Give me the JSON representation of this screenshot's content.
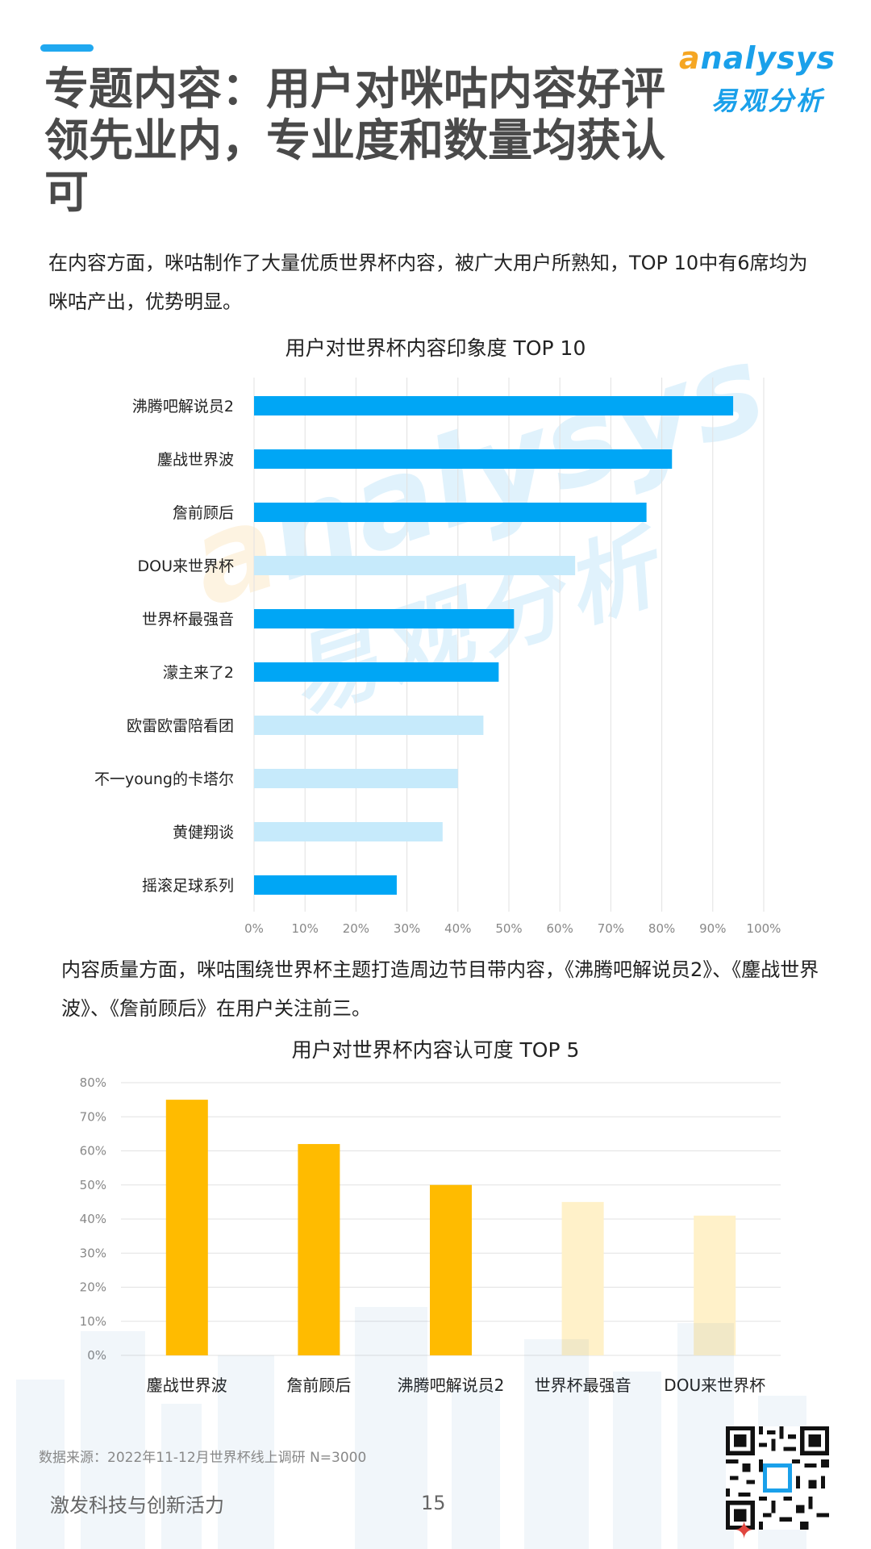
{
  "header": {
    "title": "专题内容：用户对咪咕内容好评领先业内，专业度和数量均获认可",
    "logo_en_accent": "a",
    "logo_en_rest": "nalysys",
    "logo_cn": "易观分析"
  },
  "intro_1": "在内容方面，咪咕制作了大量优质世界杯内容，被广大用户所熟知，TOP 10中有6席均为咪咕产出，优势明显。",
  "intro_2": "内容质量方面，咪咕围绕世界杯主题打造周边节目带内容，《沸腾吧解说员2》、《鏖战世界波》、《詹前顾后》在用户关注前三。",
  "colors": {
    "accent_blue": "#00A6F5",
    "light_blue": "#C6EAFB",
    "accent_yellow": "#FFBB00",
    "light_yellow": "#FFF1C9"
  },
  "chart_data": [
    {
      "type": "bar",
      "orientation": "horizontal",
      "title": "用户对世界杯内容印象度 TOP 10",
      "categories": [
        "沸腾吧解说员2",
        "鏖战世界波",
        "詹前顾后",
        "DOU来世界杯",
        "世界杯最强音",
        "濛主来了2",
        "欧雷欧雷陪看团",
        "不一young的卡塔尔",
        "黄健翔谈",
        "摇滚足球系列"
      ],
      "values": [
        94,
        82,
        77,
        63,
        51,
        48,
        45,
        40,
        37,
        28
      ],
      "highlight": [
        true,
        true,
        true,
        false,
        true,
        true,
        false,
        false,
        false,
        true
      ],
      "unit": "%",
      "xlim": [
        0,
        100
      ],
      "ticks": [
        "0%",
        "10%",
        "20%",
        "30%",
        "40%",
        "50%",
        "60%",
        "70%",
        "80%",
        "90%",
        "100%"
      ],
      "grid": "vertical"
    },
    {
      "type": "bar",
      "orientation": "vertical",
      "title": "用户对世界杯内容认可度 TOP 5",
      "categories": [
        "鏖战世界波",
        "詹前顾后",
        "沸腾吧解说员2",
        "世界杯最强音",
        "DOU来世界杯"
      ],
      "values": [
        75,
        62,
        50,
        45,
        41
      ],
      "highlight": [
        true,
        true,
        true,
        false,
        false
      ],
      "unit": "%",
      "ylim": [
        0,
        80
      ],
      "ticks": [
        "0%",
        "10%",
        "20%",
        "30%",
        "40%",
        "50%",
        "60%",
        "70%",
        "80%"
      ],
      "grid": "horizontal"
    }
  ],
  "footer": {
    "source": "数据来源：2022年11-12月世界杯线上调研   N=3000",
    "slogan": "激发科技与创新活力",
    "page_number": "15"
  }
}
